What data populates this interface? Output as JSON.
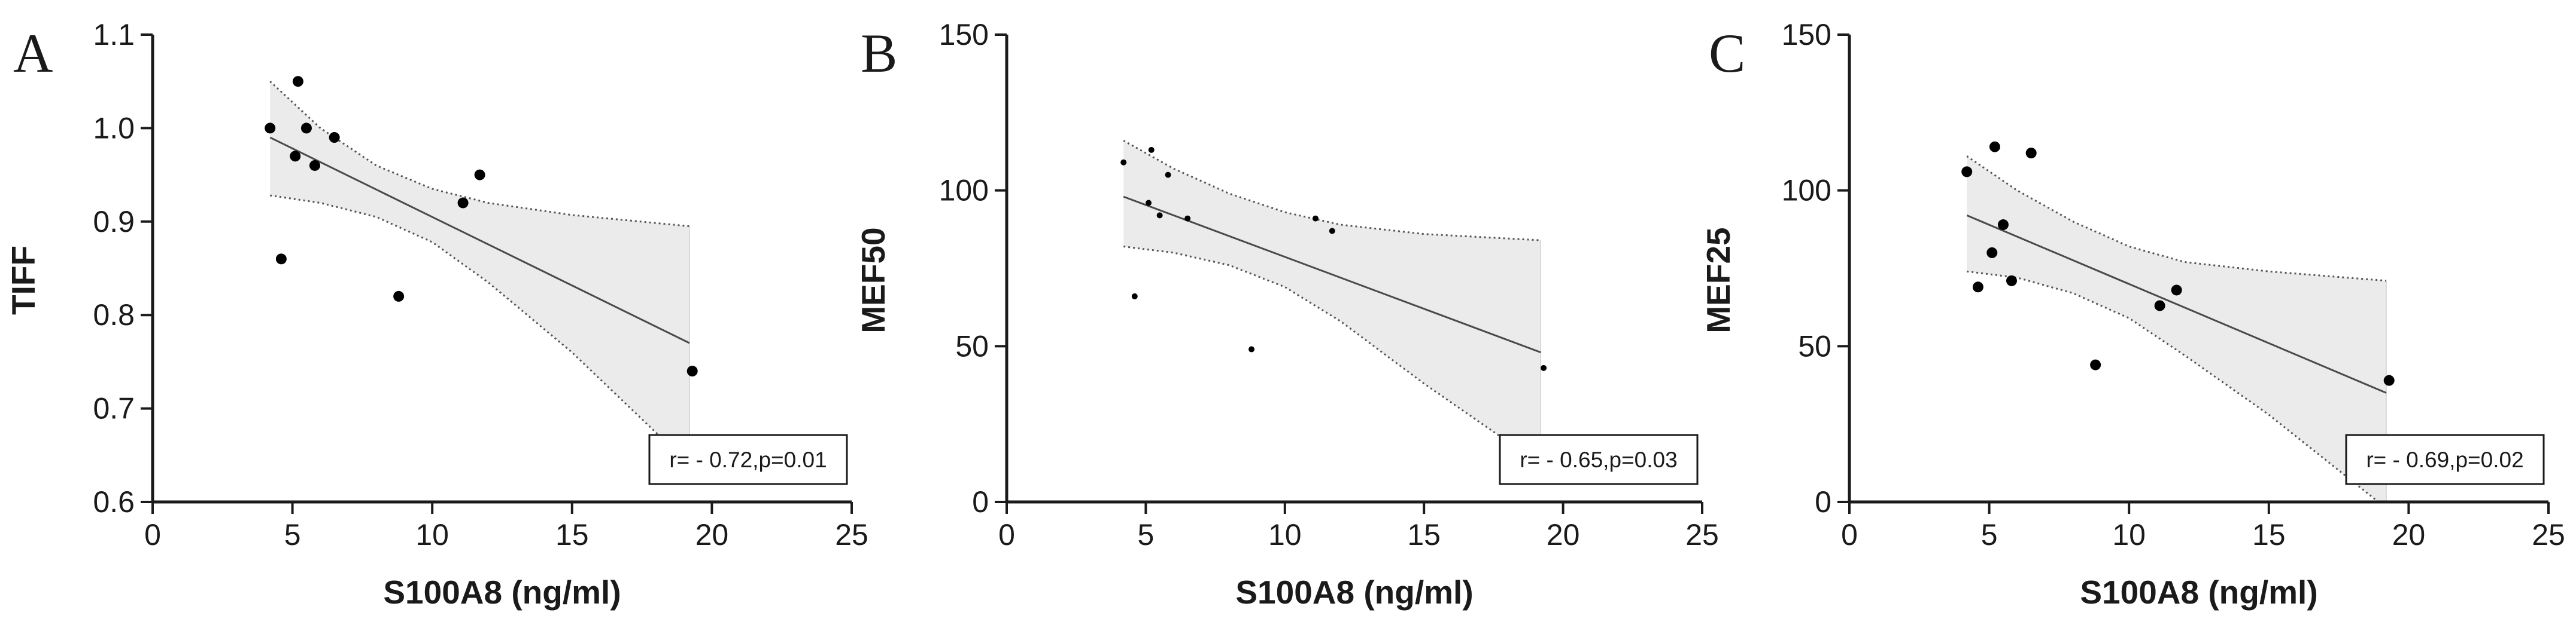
{
  "chart_data": [
    {
      "type": "scatter",
      "panel_label": "A",
      "title": "",
      "xlabel": "S100A8 (ng/ml)",
      "ylabel": "TIFF",
      "xlim": [
        0,
        25
      ],
      "ylim": [
        0.6,
        1.1
      ],
      "xticks": [
        0,
        5,
        10,
        15,
        20,
        25
      ],
      "yticks": [
        0.6,
        0.7,
        0.8,
        0.9,
        1.0,
        1.1
      ],
      "xtick_labels": [
        "0",
        "5",
        "10",
        "15",
        "20",
        "25"
      ],
      "ytick_labels": [
        "0.6",
        "0.7",
        "0.8",
        "0.9",
        "1.0",
        "1.1"
      ],
      "points": [
        {
          "x": 4.2,
          "y": 1.0
        },
        {
          "x": 4.6,
          "y": 0.86
        },
        {
          "x": 5.1,
          "y": 0.97
        },
        {
          "x": 5.2,
          "y": 1.05
        },
        {
          "x": 5.5,
          "y": 1.0
        },
        {
          "x": 5.8,
          "y": 0.96
        },
        {
          "x": 6.5,
          "y": 0.99
        },
        {
          "x": 8.8,
          "y": 0.82
        },
        {
          "x": 11.1,
          "y": 0.92
        },
        {
          "x": 11.7,
          "y": 0.95
        },
        {
          "x": 19.3,
          "y": 0.74
        }
      ],
      "fit": {
        "x": [
          4.2,
          19.2
        ],
        "y": [
          0.99,
          0.77
        ]
      },
      "ci_upper": [
        {
          "x": 4.2,
          "y": 1.05
        },
        {
          "x": 6.0,
          "y": 1.0
        },
        {
          "x": 8.0,
          "y": 0.96
        },
        {
          "x": 10.0,
          "y": 0.935
        },
        {
          "x": 12.0,
          "y": 0.92
        },
        {
          "x": 15.0,
          "y": 0.907
        },
        {
          "x": 19.2,
          "y": 0.895
        }
      ],
      "ci_lower": [
        {
          "x": 4.2,
          "y": 0.928
        },
        {
          "x": 6.0,
          "y": 0.92
        },
        {
          "x": 8.0,
          "y": 0.905
        },
        {
          "x": 10.0,
          "y": 0.878
        },
        {
          "x": 12.0,
          "y": 0.835
        },
        {
          "x": 15.0,
          "y": 0.76
        },
        {
          "x": 19.2,
          "y": 0.64
        }
      ],
      "annotation": "r= - 0.72,p=0.01"
    },
    {
      "type": "scatter",
      "panel_label": "B",
      "title": "",
      "xlabel": "S100A8 (ng/ml)",
      "ylabel": "MEF50",
      "xlim": [
        0,
        25
      ],
      "ylim": [
        0,
        150
      ],
      "xticks": [
        0,
        5,
        10,
        15,
        20,
        25
      ],
      "yticks": [
        0,
        50,
        100,
        150
      ],
      "xtick_labels": [
        "0",
        "5",
        "10",
        "15",
        "20",
        "25"
      ],
      "ytick_labels": [
        "0",
        "50",
        "100",
        "150"
      ],
      "points": [
        {
          "x": 4.2,
          "y": 109
        },
        {
          "x": 4.6,
          "y": 66
        },
        {
          "x": 5.1,
          "y": 96
        },
        {
          "x": 5.2,
          "y": 113
        },
        {
          "x": 5.5,
          "y": 92
        },
        {
          "x": 5.8,
          "y": 105
        },
        {
          "x": 6.5,
          "y": 91
        },
        {
          "x": 8.8,
          "y": 49
        },
        {
          "x": 11.1,
          "y": 91
        },
        {
          "x": 11.7,
          "y": 87
        },
        {
          "x": 19.3,
          "y": 43
        }
      ],
      "fit": {
        "x": [
          4.2,
          19.2
        ],
        "y": [
          98,
          48
        ]
      },
      "ci_upper": [
        {
          "x": 4.2,
          "y": 116
        },
        {
          "x": 6.0,
          "y": 107
        },
        {
          "x": 8.0,
          "y": 99
        },
        {
          "x": 10.0,
          "y": 93
        },
        {
          "x": 12.0,
          "y": 89
        },
        {
          "x": 15.0,
          "y": 86
        },
        {
          "x": 19.2,
          "y": 84
        }
      ],
      "ci_lower": [
        {
          "x": 4.2,
          "y": 82
        },
        {
          "x": 6.0,
          "y": 80
        },
        {
          "x": 8.0,
          "y": 76
        },
        {
          "x": 10.0,
          "y": 69
        },
        {
          "x": 12.0,
          "y": 58
        },
        {
          "x": 15.0,
          "y": 38
        },
        {
          "x": 19.2,
          "y": 12
        }
      ],
      "annotation": "r= - 0.65,p=0.03"
    },
    {
      "type": "scatter",
      "panel_label": "C",
      "title": "",
      "xlabel": "S100A8 (ng/ml)",
      "ylabel": "MEF25",
      "xlim": [
        0,
        25
      ],
      "ylim": [
        0,
        150
      ],
      "xticks": [
        0,
        5,
        10,
        15,
        20,
        25
      ],
      "yticks": [
        0,
        50,
        100,
        150
      ],
      "xtick_labels": [
        "0",
        "5",
        "10",
        "15",
        "20",
        "25"
      ],
      "ytick_labels": [
        "0",
        "50",
        "100",
        "150"
      ],
      "points": [
        {
          "x": 4.2,
          "y": 106
        },
        {
          "x": 4.6,
          "y": 69
        },
        {
          "x": 5.1,
          "y": 80
        },
        {
          "x": 5.2,
          "y": 114
        },
        {
          "x": 5.5,
          "y": 89
        },
        {
          "x": 5.8,
          "y": 71
        },
        {
          "x": 6.5,
          "y": 112
        },
        {
          "x": 8.8,
          "y": 44
        },
        {
          "x": 11.1,
          "y": 63
        },
        {
          "x": 11.7,
          "y": 68
        },
        {
          "x": 19.3,
          "y": 39
        }
      ],
      "fit": {
        "x": [
          4.2,
          19.2
        ],
        "y": [
          92,
          35
        ]
      },
      "ci_upper": [
        {
          "x": 4.2,
          "y": 111
        },
        {
          "x": 6.0,
          "y": 100
        },
        {
          "x": 8.0,
          "y": 90
        },
        {
          "x": 10.0,
          "y": 82
        },
        {
          "x": 12.0,
          "y": 77
        },
        {
          "x": 15.0,
          "y": 74
        },
        {
          "x": 19.2,
          "y": 71
        }
      ],
      "ci_lower": [
        {
          "x": 4.2,
          "y": 74
        },
        {
          "x": 6.0,
          "y": 72
        },
        {
          "x": 8.0,
          "y": 67
        },
        {
          "x": 10.0,
          "y": 59
        },
        {
          "x": 12.0,
          "y": 47
        },
        {
          "x": 15.0,
          "y": 28
        },
        {
          "x": 19.2,
          "y": -2
        }
      ],
      "annotation": "r= - 0.69,p=0.02"
    }
  ],
  "colors": {
    "axis": "#1a1a1a",
    "points": "#000000",
    "fit_line": "#4a4a4a",
    "ci_fill": "#ebebeb",
    "ci_border": "#555555",
    "annotation_border": "#1a1a1a"
  }
}
